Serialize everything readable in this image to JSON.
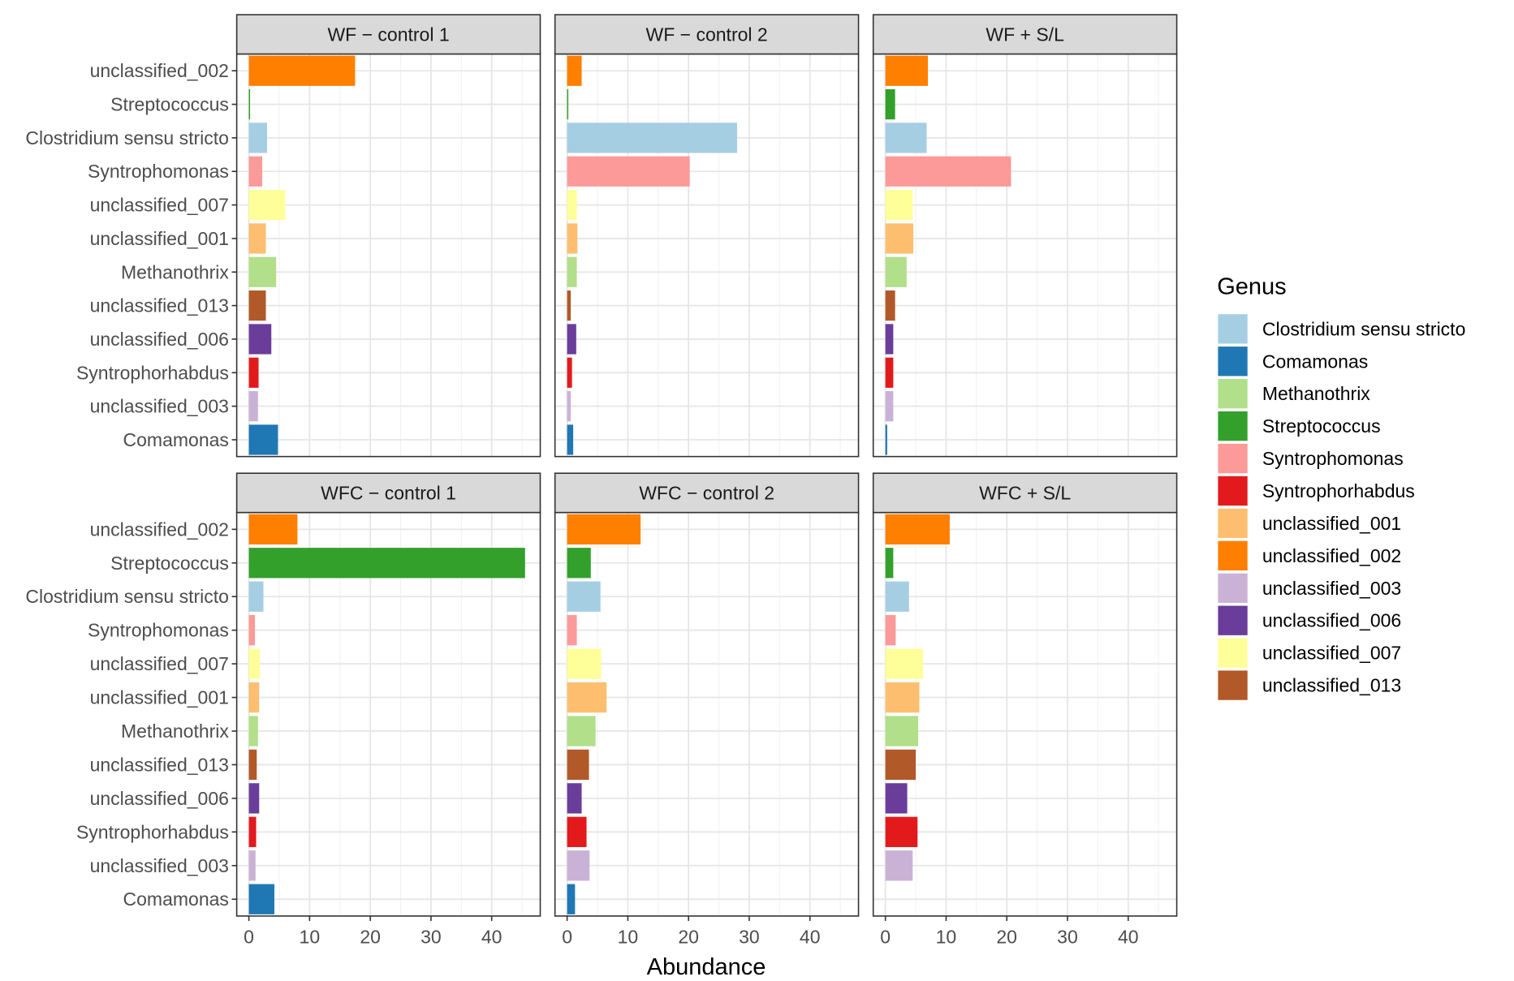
{
  "chart_data": {
    "type": "bar",
    "orientation": "horizontal",
    "xlabel": "Abundance",
    "ylabel": "",
    "xlim": [
      -2,
      48
    ],
    "x_ticks": [
      0,
      10,
      20,
      30,
      40
    ],
    "grid": true,
    "legend_position": "right",
    "legend": {
      "title": "Genus",
      "entries": [
        "Clostridium sensu stricto",
        "Comamonas",
        "Methanothrix",
        "Streptococcus",
        "Syntrophomonas",
        "Syntrophorhabdus",
        "unclassified_001",
        "unclassified_002",
        "unclassified_003",
        "unclassified_006",
        "unclassified_007",
        "unclassified_013"
      ]
    },
    "colors": {
      "Clostridium sensu stricto": "#a6cee3",
      "Comamonas": "#1f78b4",
      "Methanothrix": "#b2df8a",
      "Streptococcus": "#33a02c",
      "Syntrophomonas": "#fb9a99",
      "Syntrophorhabdus": "#e31a1c",
      "unclassified_001": "#fdbf6f",
      "unclassified_002": "#ff7f00",
      "unclassified_003": "#cab2d6",
      "unclassified_006": "#6a3d9a",
      "unclassified_007": "#ffff99",
      "unclassified_013": "#b15928"
    },
    "categories": [
      "unclassified_002",
      "Streptococcus",
      "Clostridium sensu stricto",
      "Syntrophomonas",
      "unclassified_007",
      "unclassified_001",
      "Methanothrix",
      "unclassified_013",
      "unclassified_006",
      "Syntrophorhabdus",
      "unclassified_003",
      "Comamonas"
    ],
    "panels": [
      {
        "title": "WF − control 1",
        "values": [
          17.5,
          0.2,
          3.0,
          2.2,
          6.0,
          2.8,
          4.5,
          2.8,
          3.7,
          1.6,
          1.5,
          4.8
        ]
      },
      {
        "title": "WF − control 2",
        "values": [
          2.4,
          0.2,
          28.0,
          20.2,
          1.6,
          1.7,
          1.6,
          0.6,
          1.5,
          0.8,
          0.6,
          1.0
        ]
      },
      {
        "title": "WF + S/L",
        "values": [
          7.0,
          1.6,
          6.8,
          20.7,
          4.5,
          4.6,
          3.5,
          1.6,
          1.3,
          1.3,
          1.3,
          0.3
        ]
      },
      {
        "title": "WFC − control 1",
        "values": [
          8.0,
          45.5,
          2.4,
          1.0,
          1.8,
          1.7,
          1.5,
          1.3,
          1.7,
          1.2,
          1.1,
          4.2
        ]
      },
      {
        "title": "WFC − control 2",
        "values": [
          12.1,
          3.9,
          5.5,
          1.6,
          5.6,
          6.5,
          4.7,
          3.6,
          2.4,
          3.2,
          3.7,
          1.3
        ]
      },
      {
        "title": "WFC + S/L",
        "values": [
          10.6,
          1.3,
          3.9,
          1.7,
          6.2,
          5.6,
          5.4,
          5.0,
          3.6,
          5.3,
          4.5,
          0.0
        ]
      }
    ]
  }
}
